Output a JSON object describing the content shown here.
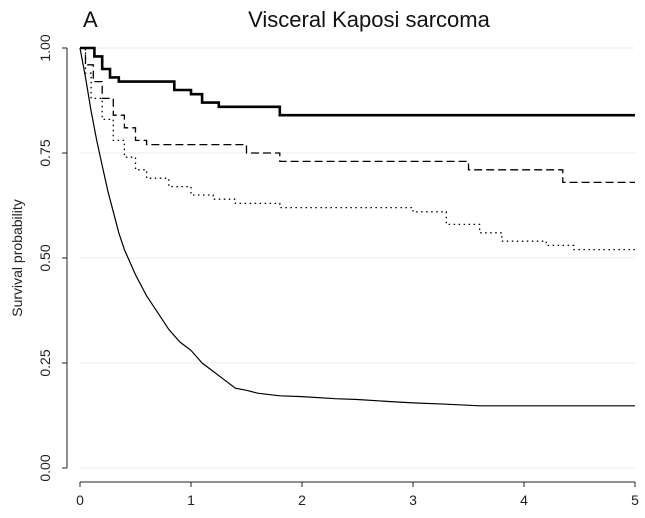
{
  "chart_data": {
    "type": "line",
    "panel_label": "A",
    "title": "Visceral Kaposi sarcoma",
    "xlabel": "",
    "ylabel": "Survival probability",
    "xlim": [
      0,
      5
    ],
    "ylim": [
      0,
      1
    ],
    "x_ticks": [
      0,
      1,
      2,
      3,
      4,
      5
    ],
    "x_tick_labels": [
      "0",
      "1",
      "2",
      "3",
      "4",
      "5"
    ],
    "y_ticks": [
      0,
      0.25,
      0.5,
      0.75,
      1.0
    ],
    "y_tick_labels": [
      "0.00",
      "0.25",
      "0.50",
      "0.75",
      "1.00"
    ],
    "grid": "horizontal",
    "legend": "none",
    "series": [
      {
        "style": "thick-solid",
        "color": "#000000",
        "step": true,
        "points": [
          [
            0,
            1.0
          ],
          [
            0.13,
            0.98
          ],
          [
            0.2,
            0.95
          ],
          [
            0.27,
            0.93
          ],
          [
            0.35,
            0.92
          ],
          [
            0.85,
            0.9
          ],
          [
            1.0,
            0.89
          ],
          [
            1.1,
            0.87
          ],
          [
            1.25,
            0.86
          ],
          [
            1.8,
            0.84
          ],
          [
            5.0,
            0.84
          ]
        ]
      },
      {
        "style": "dashed",
        "color": "#000000",
        "step": true,
        "points": [
          [
            0,
            1.0
          ],
          [
            0.05,
            0.96
          ],
          [
            0.12,
            0.92
          ],
          [
            0.2,
            0.88
          ],
          [
            0.3,
            0.84
          ],
          [
            0.4,
            0.81
          ],
          [
            0.5,
            0.78
          ],
          [
            0.6,
            0.77
          ],
          [
            1.5,
            0.75
          ],
          [
            1.8,
            0.73
          ],
          [
            3.5,
            0.71
          ],
          [
            4.35,
            0.68
          ],
          [
            5.0,
            0.68
          ]
        ]
      },
      {
        "style": "dotted",
        "color": "#000000",
        "step": true,
        "points": [
          [
            0,
            1.0
          ],
          [
            0.05,
            0.94
          ],
          [
            0.1,
            0.88
          ],
          [
            0.2,
            0.83
          ],
          [
            0.3,
            0.78
          ],
          [
            0.4,
            0.74
          ],
          [
            0.5,
            0.71
          ],
          [
            0.6,
            0.69
          ],
          [
            0.8,
            0.67
          ],
          [
            1.0,
            0.65
          ],
          [
            1.2,
            0.64
          ],
          [
            1.4,
            0.63
          ],
          [
            1.8,
            0.62
          ],
          [
            3.0,
            0.61
          ],
          [
            3.3,
            0.58
          ],
          [
            3.6,
            0.56
          ],
          [
            3.8,
            0.54
          ],
          [
            4.2,
            0.53
          ],
          [
            4.45,
            0.52
          ],
          [
            5.0,
            0.52
          ]
        ]
      },
      {
        "style": "thin-solid",
        "color": "#000000",
        "step": false,
        "points": [
          [
            0,
            1.0
          ],
          [
            0.05,
            0.93
          ],
          [
            0.1,
            0.85
          ],
          [
            0.15,
            0.78
          ],
          [
            0.2,
            0.72
          ],
          [
            0.25,
            0.66
          ],
          [
            0.3,
            0.61
          ],
          [
            0.35,
            0.56
          ],
          [
            0.4,
            0.52
          ],
          [
            0.5,
            0.46
          ],
          [
            0.6,
            0.41
          ],
          [
            0.7,
            0.37
          ],
          [
            0.8,
            0.33
          ],
          [
            0.9,
            0.3
          ],
          [
            1.0,
            0.28
          ],
          [
            1.1,
            0.25
          ],
          [
            1.2,
            0.23
          ],
          [
            1.3,
            0.21
          ],
          [
            1.4,
            0.19
          ],
          [
            1.5,
            0.185
          ],
          [
            1.6,
            0.178
          ],
          [
            1.8,
            0.172
          ],
          [
            2.0,
            0.17
          ],
          [
            2.3,
            0.165
          ],
          [
            2.5,
            0.163
          ],
          [
            2.8,
            0.158
          ],
          [
            3.0,
            0.155
          ],
          [
            3.3,
            0.152
          ],
          [
            3.6,
            0.148
          ],
          [
            4.0,
            0.148
          ],
          [
            5.0,
            0.148
          ]
        ]
      }
    ]
  }
}
